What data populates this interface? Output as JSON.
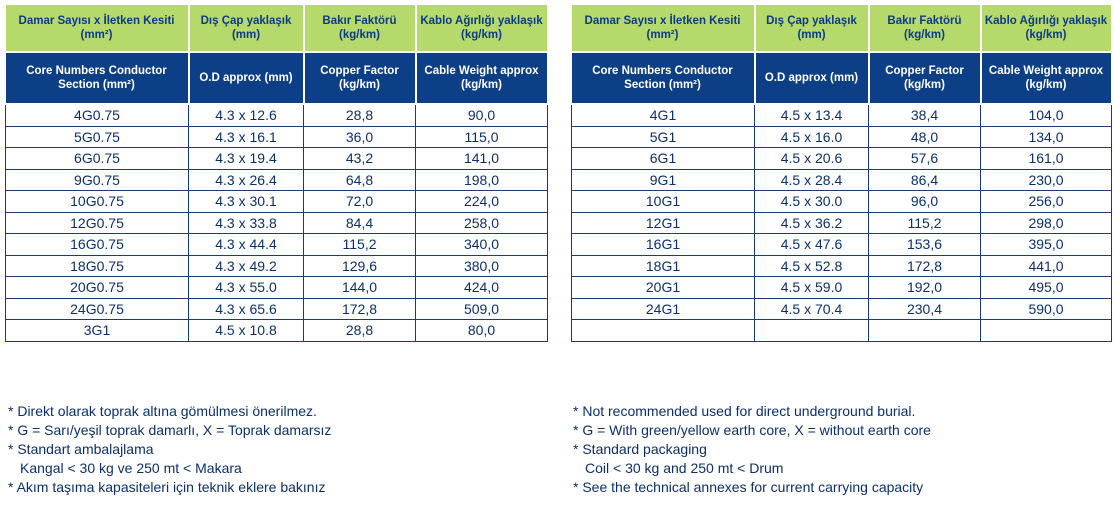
{
  "headers_tr": [
    "Damar Sayısı x İletken Kesiti (mm²)",
    "Dış Çap yaklaşık (mm)",
    "Bakır Faktörü (kg/km)",
    "Kablo Ağırlığı yaklaşık (kg/km)"
  ],
  "headers_en": [
    "Core Numbers Conductor Section (mm²)",
    "O.D approx (mm)",
    "Copper Factor (kg/km)",
    "Cable Weight approx (kg/km)"
  ],
  "left_table": [
    [
      "4G0.75",
      "4.3 x 12.6",
      "28,8",
      "90,0"
    ],
    [
      "5G0.75",
      "4.3 x 16.1",
      "36,0",
      "115,0"
    ],
    [
      "6G0.75",
      "4.3 x 19.4",
      "43,2",
      "141,0"
    ],
    [
      "9G0.75",
      "4.3 x 26.4",
      "64,8",
      "198,0"
    ],
    [
      "10G0.75",
      "4.3 x 30.1",
      "72,0",
      "224,0"
    ],
    [
      "12G0.75",
      "4.3 x 33.8",
      "84,4",
      "258,0"
    ],
    [
      "16G0.75",
      "4.3 x 44.4",
      "115,2",
      "340,0"
    ],
    [
      "18G0.75",
      "4.3 x 49.2",
      "129,6",
      "380,0"
    ],
    [
      "20G0.75",
      "4.3 x 55.0",
      "144,0",
      "424,0"
    ],
    [
      "24G0.75",
      "4.3 x 65.6",
      "172,8",
      "509,0"
    ],
    [
      "3G1",
      "4.5 x 10.8",
      "28,8",
      "80,0"
    ]
  ],
  "right_table": [
    [
      "4G1",
      "4.5 x 13.4",
      "38,4",
      "104,0"
    ],
    [
      "5G1",
      "4.5 x 16.0",
      "48,0",
      "134,0"
    ],
    [
      "6G1",
      "4.5 x 20.6",
      "57,6",
      "161,0"
    ],
    [
      "9G1",
      "4.5 x 28.4",
      "86,4",
      "230,0"
    ],
    [
      "10G1",
      "4.5 x 30.0",
      "96,0",
      "256,0"
    ],
    [
      "12G1",
      "4.5 x 36.2",
      "115,2",
      "298,0"
    ],
    [
      "16G1",
      "4.5 x 47.6",
      "153,6",
      "395,0"
    ],
    [
      "18G1",
      "4.5 x 52.8",
      "172,8",
      "441,0"
    ],
    [
      "20G1",
      "4.5 x 59.0",
      "192,0",
      "495,0"
    ],
    [
      "24G1",
      "4.5 x 70.4",
      "230,4",
      "590,0"
    ],
    [
      "",
      "",
      "",
      ""
    ]
  ],
  "notes_tr": [
    "* Direkt olarak toprak altına gömülmesi önerilmez.",
    "* G = Sarı/yeşil toprak damarlı, X = Toprak damarsız",
    "* Standart ambalajlama",
    "Kangal < 30 kg ve 250 mt < Makara",
    "* Akım taşıma kapasiteleri için teknik eklere bakınız"
  ],
  "notes_en": [
    "* Not recommended used for direct underground burial.",
    "* G = With green/yellow earth core, X = without earth core",
    "* Standard packaging",
    "Coil < 30 kg and 250 mt < Drum",
    "* See the technical annexes for current carrying capacity"
  ]
}
